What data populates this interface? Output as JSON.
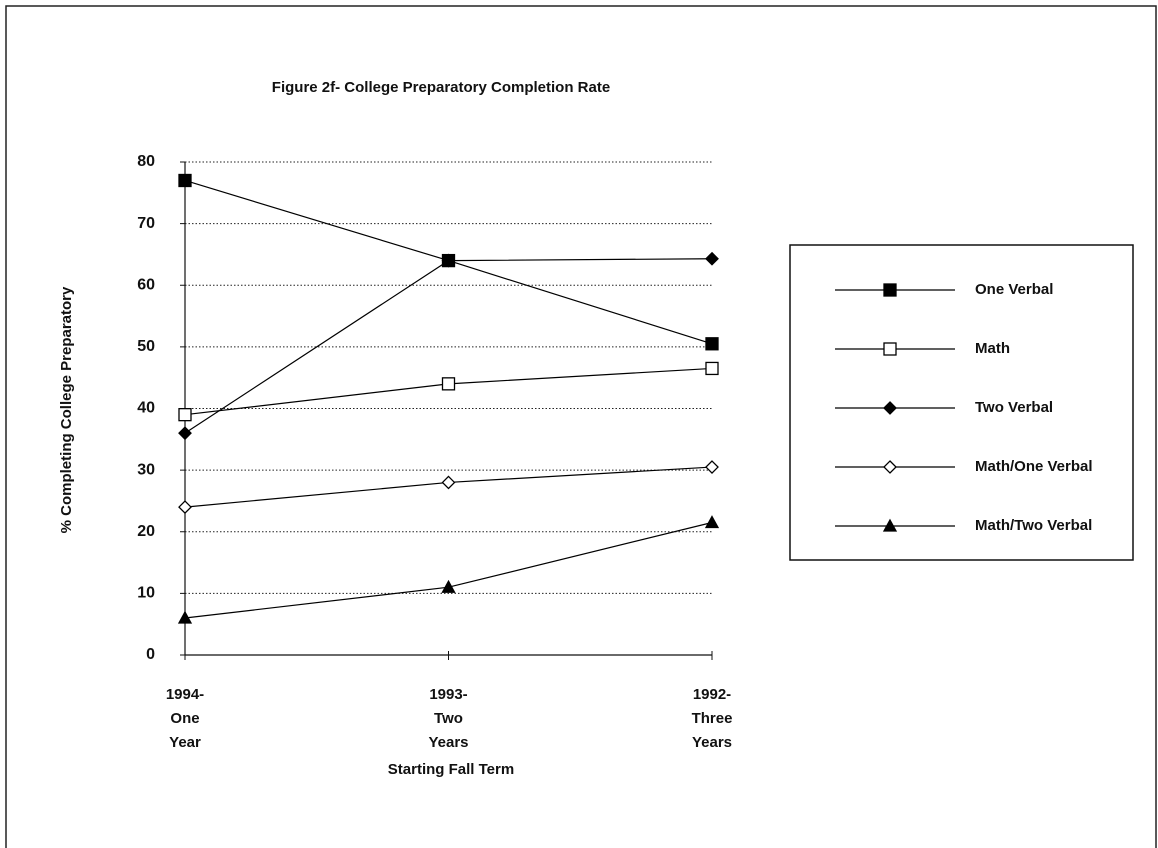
{
  "chart_data": {
    "type": "line",
    "title": "Figure 2f- College Preparatory Completion Rate",
    "y_label": "% Completing College Preparatory",
    "x_label": "Starting Fall Term",
    "categories": [
      "1994-\nOne\nYear",
      "1993-\nTwo\nYears",
      "1992-\nThree\nYears"
    ],
    "ylim": [
      0,
      80
    ],
    "yticks": [
      0,
      10,
      20,
      30,
      40,
      50,
      60,
      70,
      80
    ],
    "grid": true,
    "legend": "right",
    "series": [
      {
        "name": "One Verbal",
        "color": "#000000",
        "marker": "square-filled",
        "values": [
          77,
          64,
          50.5
        ]
      },
      {
        "name": "Math",
        "color": "#000000",
        "marker": "square-open",
        "values": [
          39,
          44,
          46.5
        ]
      },
      {
        "name": "Two Verbal",
        "color": "#000000",
        "marker": "diamond-filled",
        "values": [
          36,
          64,
          64.3
        ]
      },
      {
        "name": "Math/One Verbal",
        "color": "#000000",
        "marker": "diamond-open",
        "values": [
          24,
          28,
          30.5
        ]
      },
      {
        "name": "Math/Two Verbal",
        "color": "#000000",
        "marker": "triangle-filled",
        "values": [
          6,
          11,
          21.5
        ]
      }
    ]
  }
}
